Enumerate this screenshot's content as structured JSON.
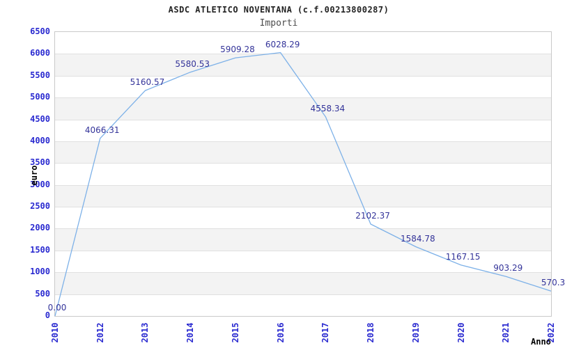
{
  "header": {
    "title": "ASDC ATLETICO NOVENTANA (c.f.00213800287)",
    "subtitle": "Importi"
  },
  "chart_data": {
    "type": "line",
    "title": "ASDC ATLETICO NOVENTANA (c.f.00213800287)",
    "subtitle": "Importi",
    "xlabel": "Anno",
    "ylabel": "euro",
    "categories": [
      "2010",
      "2012",
      "2013",
      "2014",
      "2015",
      "2016",
      "2017",
      "2018",
      "2019",
      "2020",
      "2021",
      "2022"
    ],
    "series": [
      {
        "name": "Importi",
        "values": [
          0.0,
          4066.31,
          5160.57,
          5580.53,
          5909.28,
          6028.29,
          4558.34,
          2102.37,
          1584.78,
          1167.15,
          903.29,
          570.3
        ]
      }
    ],
    "point_labels": [
      "0.00",
      "4066.31",
      "5160.57",
      "5580.53",
      "5909.28",
      "6028.29",
      "4558.34",
      "2102.37",
      "1584.78",
      "1167.15",
      "903.29",
      "570.3"
    ],
    "ylim": [
      0,
      6500
    ],
    "ytick_step": 500,
    "grid": "horizontal-bands-alternating",
    "legend": "none",
    "markers": "none"
  },
  "colors": {
    "line": "#7db1e8",
    "axis_tick_text": "#2929d0",
    "point_label_text": "#333399",
    "band_fill": "#f3f3f3",
    "gridline": "#e0e0e0",
    "plot_border": "#c9c9c9",
    "title_text": "#222222",
    "subtitle_text": "#4d4d4d",
    "axis_title_text": "#000000",
    "background": "#ffffff"
  }
}
